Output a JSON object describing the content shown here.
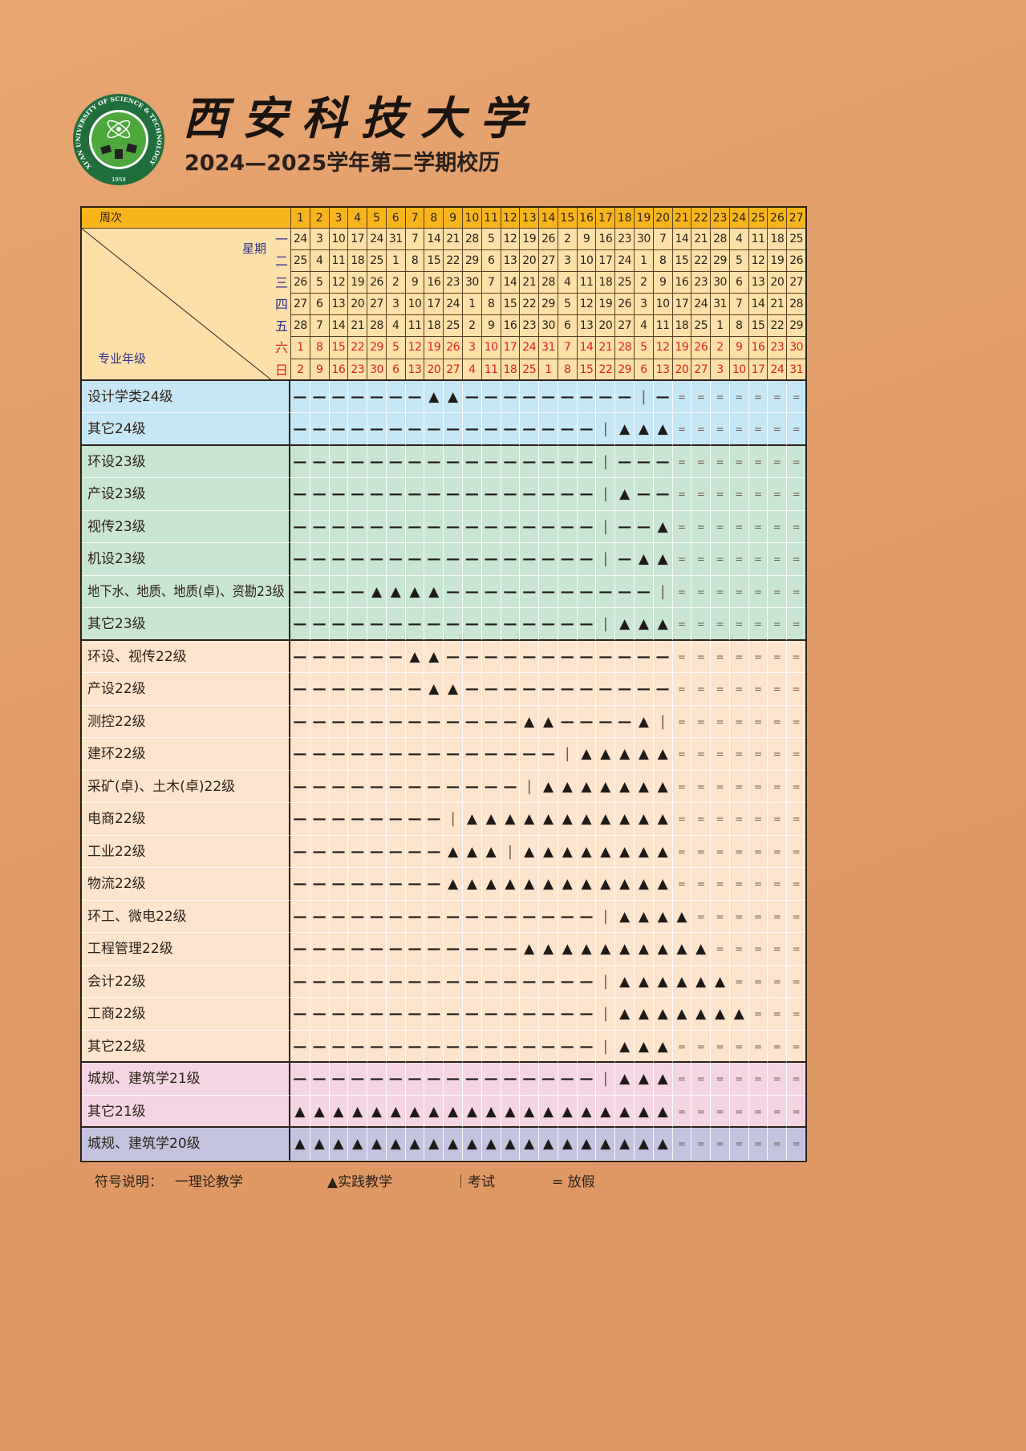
{
  "header": {
    "university_logo_text": "XI'AN UNIVERSITY OF SCIENCE & TECHNOLOGY",
    "logo_year": "1958",
    "university_name": "西安科技大学",
    "subtitle": "2024—2025学年第二学期校历"
  },
  "table": {
    "week_header_label": "周次",
    "weekday_header_label": "星期",
    "major_header_label": "专业年级",
    "weeks": [
      "1",
      "2",
      "3",
      "4",
      "5",
      "6",
      "7",
      "8",
      "9",
      "10",
      "11",
      "12",
      "13",
      "14",
      "15",
      "16",
      "17",
      "18",
      "19",
      "20",
      "21",
      "22",
      "23",
      "24",
      "25",
      "26",
      "27"
    ],
    "weekday_labels": [
      "一",
      "二",
      "三",
      "四",
      "五",
      "六",
      "日"
    ],
    "dates": [
      [
        "24",
        "3",
        "10",
        "17",
        "24",
        "31",
        "7",
        "14",
        "21",
        "28",
        "5",
        "12",
        "19",
        "26",
        "2",
        "9",
        "16",
        "23",
        "30",
        "7",
        "14",
        "21",
        "28",
        "4",
        "11",
        "18",
        "25"
      ],
      [
        "25",
        "4",
        "11",
        "18",
        "25",
        "1",
        "8",
        "15",
        "22",
        "29",
        "6",
        "13",
        "20",
        "27",
        "3",
        "10",
        "17",
        "24",
        "1",
        "8",
        "15",
        "22",
        "29",
        "5",
        "12",
        "19",
        "26"
      ],
      [
        "26",
        "5",
        "12",
        "19",
        "26",
        "2",
        "9",
        "16",
        "23",
        "30",
        "7",
        "14",
        "21",
        "28",
        "4",
        "11",
        "18",
        "25",
        "2",
        "9",
        "16",
        "23",
        "30",
        "6",
        "13",
        "20",
        "27"
      ],
      [
        "27",
        "6",
        "13",
        "20",
        "27",
        "3",
        "10",
        "17",
        "24",
        "1",
        "8",
        "15",
        "22",
        "29",
        "5",
        "12",
        "19",
        "26",
        "3",
        "10",
        "17",
        "24",
        "31",
        "7",
        "14",
        "21",
        "28"
      ],
      [
        "28",
        "7",
        "14",
        "21",
        "28",
        "4",
        "11",
        "18",
        "25",
        "2",
        "9",
        "16",
        "23",
        "30",
        "6",
        "13",
        "20",
        "27",
        "4",
        "11",
        "18",
        "25",
        "1",
        "8",
        "15",
        "22",
        "29"
      ],
      [
        "1",
        "8",
        "15",
        "22",
        "29",
        "5",
        "12",
        "19",
        "26",
        "3",
        "10",
        "17",
        "24",
        "31",
        "7",
        "14",
        "21",
        "28",
        "5",
        "12",
        "19",
        "26",
        "2",
        "9",
        "16",
        "23",
        "30"
      ],
      [
        "2",
        "9",
        "16",
        "23",
        "30",
        "6",
        "13",
        "20",
        "27",
        "4",
        "11",
        "18",
        "25",
        "1",
        "8",
        "15",
        "22",
        "29",
        "6",
        "13",
        "20",
        "27",
        "3",
        "10",
        "17",
        "24",
        "31"
      ]
    ],
    "groups": [
      {
        "color": "#c6e7f5",
        "rows": [
          {
            "label": "设计学类24级",
            "weeks": "———————▲▲—————————|—======="
          },
          {
            "label": "其它24级",
            "weeks": "————————————————|▲▲▲======="
          }
        ]
      },
      {
        "color": "#c9e5d3",
        "rows": [
          {
            "label": "环设23级",
            "weeks": "————————————————|———======="
          },
          {
            "label": "产设23级",
            "weeks": "————————————————|▲——======="
          },
          {
            "label": "视传23级",
            "weeks": "————————————————|——▲======="
          },
          {
            "label": "机设23级",
            "weeks": "————————————————|—▲▲======="
          },
          {
            "label": "地下水、地质、地质(卓)、资勘23级",
            "weeks": "————▲▲▲▲———————————|======="
          },
          {
            "label": "其它23级",
            "weeks": "————————————————|▲▲▲======="
          }
        ]
      },
      {
        "color": "#fde4cc",
        "rows": [
          {
            "label": "环设、视传22级",
            "weeks": "——————▲▲————————————======="
          },
          {
            "label": "产设22级",
            "weeks": "———————▲▲———————————======="
          },
          {
            "label": "测控22级",
            "weeks": "————————————▲▲————▲|======="
          },
          {
            "label": "建环22级",
            "weeks": "——————————————|▲▲▲▲▲======="
          },
          {
            "label": "采矿(卓)、土木(卓)22级",
            "weeks": "————————————|▲▲▲▲▲▲▲======="
          },
          {
            "label": "电商22级",
            "weeks": "————————|▲▲▲▲▲▲▲▲▲▲▲======="
          },
          {
            "label": "工业22级",
            "weeks": "————————▲▲▲|▲▲▲▲▲▲▲▲======="
          },
          {
            "label": "物流22级",
            "weeks": "————————▲▲▲▲▲▲▲▲▲▲▲▲======="
          },
          {
            "label": "环工、微电22级",
            "weeks": "————————————————|▲▲▲▲======"
          },
          {
            "label": "工程管理22级",
            "weeks": "————————————▲▲▲▲▲▲▲▲▲▲====="
          },
          {
            "label": "会计22级",
            "weeks": "————————————————|▲▲▲▲▲▲===="
          },
          {
            "label": "工商22级",
            "weeks": "————————————————|▲▲▲▲▲▲▲==="
          },
          {
            "label": "其它22级",
            "weeks": "————————————————|▲▲▲======="
          }
        ]
      },
      {
        "color": "#f5d5e3",
        "rows": [
          {
            "label": "城规、建筑学21级",
            "weeks": "————————————————|▲▲▲======="
          },
          {
            "label": "其它21级",
            "weeks": "▲▲▲▲▲▲▲▲▲▲▲▲▲▲▲▲▲▲▲▲======="
          }
        ]
      },
      {
        "color": "#c3c3e0",
        "rows": [
          {
            "label": "城规、建筑学20级",
            "weeks": "▲▲▲▲▲▲▲▲▲▲▲▲▲▲▲▲▲▲▲▲======="
          }
        ]
      }
    ]
  },
  "legend": {
    "title": "符号说明：",
    "theory": "一理论教学",
    "practice": "▲实践教学",
    "exam": "｜考试",
    "holiday": "= 放假"
  },
  "colors": {
    "background": "#e09a66",
    "header_yellow": "#f8b51b",
    "date_area": "#fbe0a8",
    "weekend_red": "#e0201c",
    "label_blue": "#34308c",
    "logo_green": "#1f6e3c"
  }
}
